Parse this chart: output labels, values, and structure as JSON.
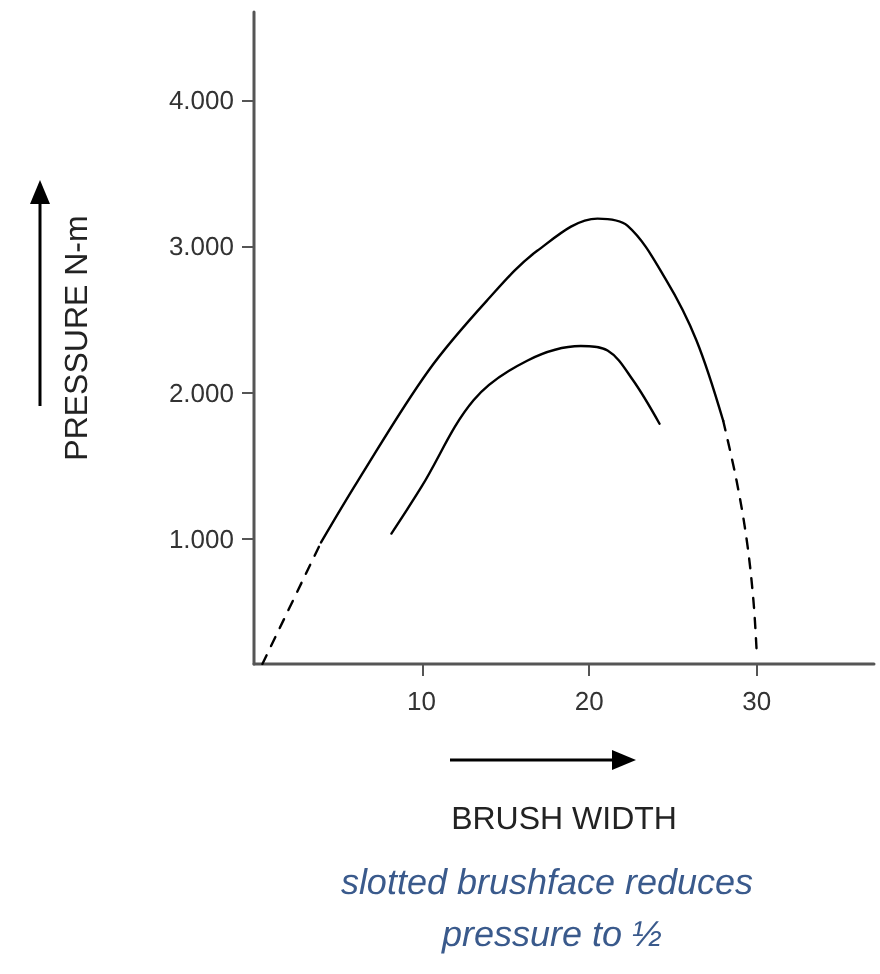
{
  "chart_data": {
    "type": "line",
    "xlabel": "BRUSH WIDTH",
    "ylabel": "PRESSURE N-m",
    "annotations": [
      "slotted brushface reduces pressure to ½"
    ],
    "xlim": [
      0,
      37
    ],
    "xticks": [
      10,
      20,
      30
    ],
    "ylim": [
      150,
      4600
    ],
    "yticks": [
      {
        "value": 1000,
        "label": "1.000"
      },
      {
        "value": 2000,
        "label": "2.000"
      },
      {
        "value": 3000,
        "label": "3.000"
      },
      {
        "value": 4000,
        "label": "4.000"
      }
    ],
    "grid": false,
    "marker": "none",
    "series": [
      {
        "color": "#000000",
        "line_style": "dashed",
        "x": [
          0.5,
          4.0
        ],
        "values": [
          150,
          980
        ]
      },
      {
        "color": "#000000",
        "line_style": "solid",
        "x": [
          4.0,
          6.2,
          10.4,
          13.9,
          16.9,
          20.5,
          22.3,
          24.6,
          26.4,
          28.0
        ],
        "values": [
          980,
          1400,
          2150,
          2630,
          2970,
          3190,
          3140,
          2770,
          2360,
          1810
        ]
      },
      {
        "color": "#000000",
        "line_style": "dashed",
        "x": [
          28.0,
          28.8,
          29.4,
          29.8,
          30.0
        ],
        "values": [
          1810,
          1400,
          1000,
          590,
          230
        ]
      },
      {
        "color": "#000000",
        "line_style": "solid",
        "x": [
          8.2,
          10.0,
          13.1,
          16.3,
          19.5,
          21.1,
          22.6,
          24.2
        ],
        "values": [
          1040,
          1360,
          1950,
          2220,
          2320,
          2290,
          2090,
          1790
        ]
      }
    ]
  }
}
